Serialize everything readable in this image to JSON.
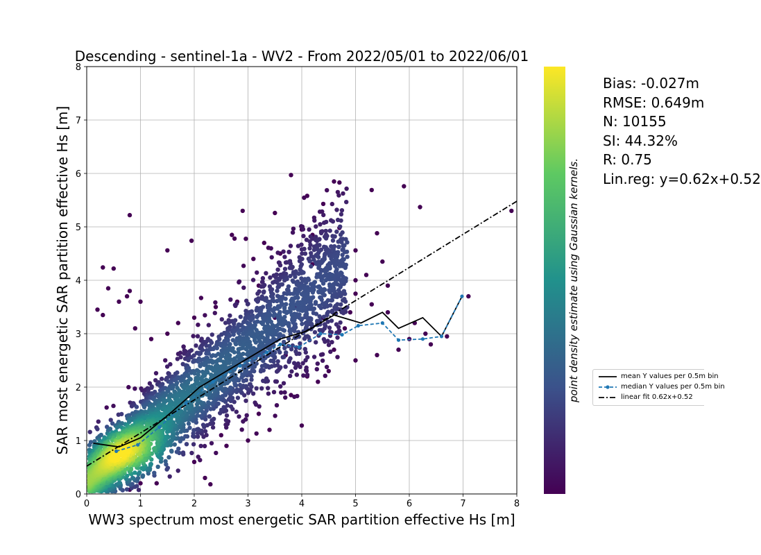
{
  "chart_data": {
    "type": "scatter",
    "title": "Descending - sentinel-1a - WV2 - From 2022/05/01 to 2022/06/01",
    "xlabel": "WW3 spectrum most energetic SAR partition effective Hs [m]",
    "ylabel": "SAR most energetic SAR partition effective Hs [m]",
    "xlim": [
      0,
      8
    ],
    "ylim": [
      0,
      8
    ],
    "xticks": [
      "0",
      "1",
      "2",
      "3",
      "4",
      "5",
      "6",
      "7",
      "8"
    ],
    "yticks": [
      "0",
      "1",
      "2",
      "3",
      "4",
      "5",
      "6",
      "7",
      "8"
    ],
    "grid": true,
    "colorbar_label": "point density estimate using Gaussian kernels.",
    "colormap": [
      "#440154",
      "#3b528b",
      "#21918c",
      "#5ec962",
      "#fde725"
    ],
    "stats": [
      "Bias: -0.027m",
      "RMSE: 0.649m",
      "N: 10155",
      "SI: 44.32%",
      "R: 0.75",
      "Lin.reg: y=0.62x+0.52"
    ],
    "legend_position": "right, outside the plot",
    "series": [
      {
        "name": "mean Y values per 0.5m bin",
        "style": "solid",
        "color": "#000000",
        "x": [
          0.12,
          0.6,
          1.0,
          1.6,
          2.1,
          2.6,
          3.1,
          3.6,
          4.1,
          4.6,
          5.1,
          5.5,
          5.8,
          6.25,
          6.6,
          6.98
        ],
        "y": [
          0.95,
          0.88,
          1.05,
          1.55,
          2.0,
          2.3,
          2.6,
          2.9,
          3.05,
          3.35,
          3.2,
          3.4,
          3.1,
          3.3,
          2.95,
          3.7
        ]
      },
      {
        "name": "median Y values per 0.5m bin",
        "style": "dashed-markers",
        "color": "#1f77b4",
        "x": [
          0.55,
          0.95,
          1.35,
          1.85,
          2.35,
          2.85,
          3.35,
          3.6,
          3.95,
          4.35,
          4.75,
          5.05,
          5.5,
          5.8,
          6.25,
          6.6,
          6.98
        ],
        "y": [
          0.8,
          0.92,
          1.25,
          1.7,
          2.1,
          2.4,
          2.65,
          2.8,
          2.75,
          3.0,
          2.98,
          3.15,
          3.2,
          2.88,
          2.9,
          2.95,
          3.7
        ]
      },
      {
        "name": "linear fit 0.62x+0.52",
        "style": "dashdot",
        "color": "#000000",
        "slope": 0.62,
        "intercept": 0.52
      }
    ],
    "scatter_points": [
      [
        0.8,
        5.22
      ],
      [
        3.8,
        5.97
      ],
      [
        4.6,
        5.85
      ],
      [
        4.7,
        5.83
      ],
      [
        5.9,
        5.76
      ],
      [
        5.3,
        5.69
      ],
      [
        4.1,
        5.58
      ],
      [
        4.4,
        5.43
      ],
      [
        2.9,
        5.3
      ],
      [
        6.2,
        5.37
      ],
      [
        7.9,
        5.3
      ],
      [
        3.5,
        5.26
      ],
      [
        0.3,
        4.24
      ],
      [
        0.5,
        4.22
      ],
      [
        1.5,
        4.56
      ],
      [
        1.95,
        4.74
      ],
      [
        2.75,
        4.78
      ],
      [
        2.7,
        4.85
      ],
      [
        3.1,
        4.4
      ],
      [
        3.3,
        4.7
      ],
      [
        3.6,
        4.5
      ],
      [
        4.0,
        4.95
      ],
      [
        4.2,
        4.85
      ],
      [
        4.7,
        4.98
      ],
      [
        5.0,
        4.56
      ],
      [
        5.4,
        4.88
      ],
      [
        5.5,
        4.35
      ],
      [
        5.2,
        4.1
      ],
      [
        5.0,
        4.0
      ],
      [
        4.2,
        4.3
      ],
      [
        0.4,
        3.85
      ],
      [
        0.6,
        3.6
      ],
      [
        0.8,
        3.8
      ],
      [
        1.0,
        3.6
      ],
      [
        0.9,
        3.1
      ],
      [
        0.3,
        3.35
      ],
      [
        0.2,
        3.45
      ],
      [
        0.75,
        3.7
      ],
      [
        5.0,
        3.75
      ],
      [
        5.3,
        3.55
      ],
      [
        5.6,
        3.4
      ],
      [
        5.6,
        3.9
      ],
      [
        6.1,
        3.2
      ],
      [
        6.3,
        3.0
      ],
      [
        5.8,
        2.7
      ],
      [
        5.4,
        2.6
      ],
      [
        5.0,
        2.5
      ],
      [
        4.5,
        2.3
      ],
      [
        4.3,
        2.1
      ],
      [
        4.1,
        2.2
      ],
      [
        3.8,
        1.85
      ],
      [
        4.0,
        1.28
      ],
      [
        3.4,
        1.2
      ],
      [
        3.2,
        1.5
      ],
      [
        3.0,
        1.0
      ],
      [
        2.6,
        0.9
      ],
      [
        2.2,
        0.3
      ],
      [
        2.3,
        0.18
      ],
      [
        1.3,
        0.2
      ],
      [
        1.0,
        0.2
      ],
      [
        0.8,
        0.08
      ],
      [
        0.4,
        0.12
      ],
      [
        0.2,
        0.3
      ],
      [
        0.1,
        0.6
      ],
      [
        2.5,
        1.1
      ],
      [
        2.0,
        0.6
      ],
      [
        6.0,
        2.9
      ],
      [
        6.4,
        2.8
      ],
      [
        6.7,
        2.95
      ],
      [
        7.1,
        3.7
      ],
      [
        3.2,
        3.9
      ],
      [
        2.8,
        3.6
      ],
      [
        2.4,
        3.5
      ],
      [
        2.0,
        3.3
      ],
      [
        1.7,
        3.2
      ],
      [
        1.5,
        3.0
      ],
      [
        1.2,
        2.9
      ],
      [
        3.5,
        3.3
      ],
      [
        3.9,
        3.5
      ],
      [
        4.4,
        3.3
      ],
      [
        4.8,
        3.1
      ],
      [
        3.7,
        2.6
      ],
      [
        4.6,
        2.7
      ],
      [
        4.9,
        3.4
      ]
    ],
    "density_core": {
      "x_range": [
        0,
        4.8
      ],
      "trend_slope": 0.85,
      "trend_intercept": 0.18,
      "peak": [
        0.75,
        0.78
      ]
    }
  }
}
